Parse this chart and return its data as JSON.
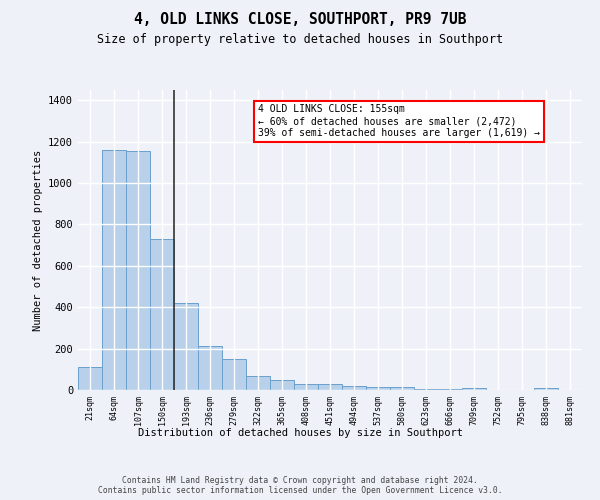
{
  "title": "4, OLD LINKS CLOSE, SOUTHPORT, PR9 7UB",
  "subtitle": "Size of property relative to detached houses in Southport",
  "xlabel": "Distribution of detached houses by size in Southport",
  "ylabel": "Number of detached properties",
  "categories": [
    "21sqm",
    "64sqm",
    "107sqm",
    "150sqm",
    "193sqm",
    "236sqm",
    "279sqm",
    "322sqm",
    "365sqm",
    "408sqm",
    "451sqm",
    "494sqm",
    "537sqm",
    "580sqm",
    "623sqm",
    "666sqm",
    "709sqm",
    "752sqm",
    "795sqm",
    "838sqm",
    "881sqm"
  ],
  "values": [
    110,
    1160,
    1155,
    730,
    420,
    215,
    150,
    70,
    50,
    30,
    30,
    20,
    15,
    15,
    5,
    5,
    10,
    2,
    2,
    8,
    0
  ],
  "bar_color": "#b8d0ea",
  "bar_edgecolor": "#6aa0cc",
  "annotation_title": "4 OLD LINKS CLOSE: 155sqm",
  "annotation_line1": "← 60% of detached houses are smaller (2,472)",
  "annotation_line2": "39% of semi-detached houses are larger (1,619) →",
  "vline_x": 3.5,
  "ylim": [
    0,
    1450
  ],
  "yticks": [
    0,
    200,
    400,
    600,
    800,
    1000,
    1200,
    1400
  ],
  "background_color": "#eef2f8",
  "grid_color": "#ffffff",
  "footer_line1": "Contains HM Land Registry data © Crown copyright and database right 2024.",
  "footer_line2": "Contains public sector information licensed under the Open Government Licence v3.0."
}
